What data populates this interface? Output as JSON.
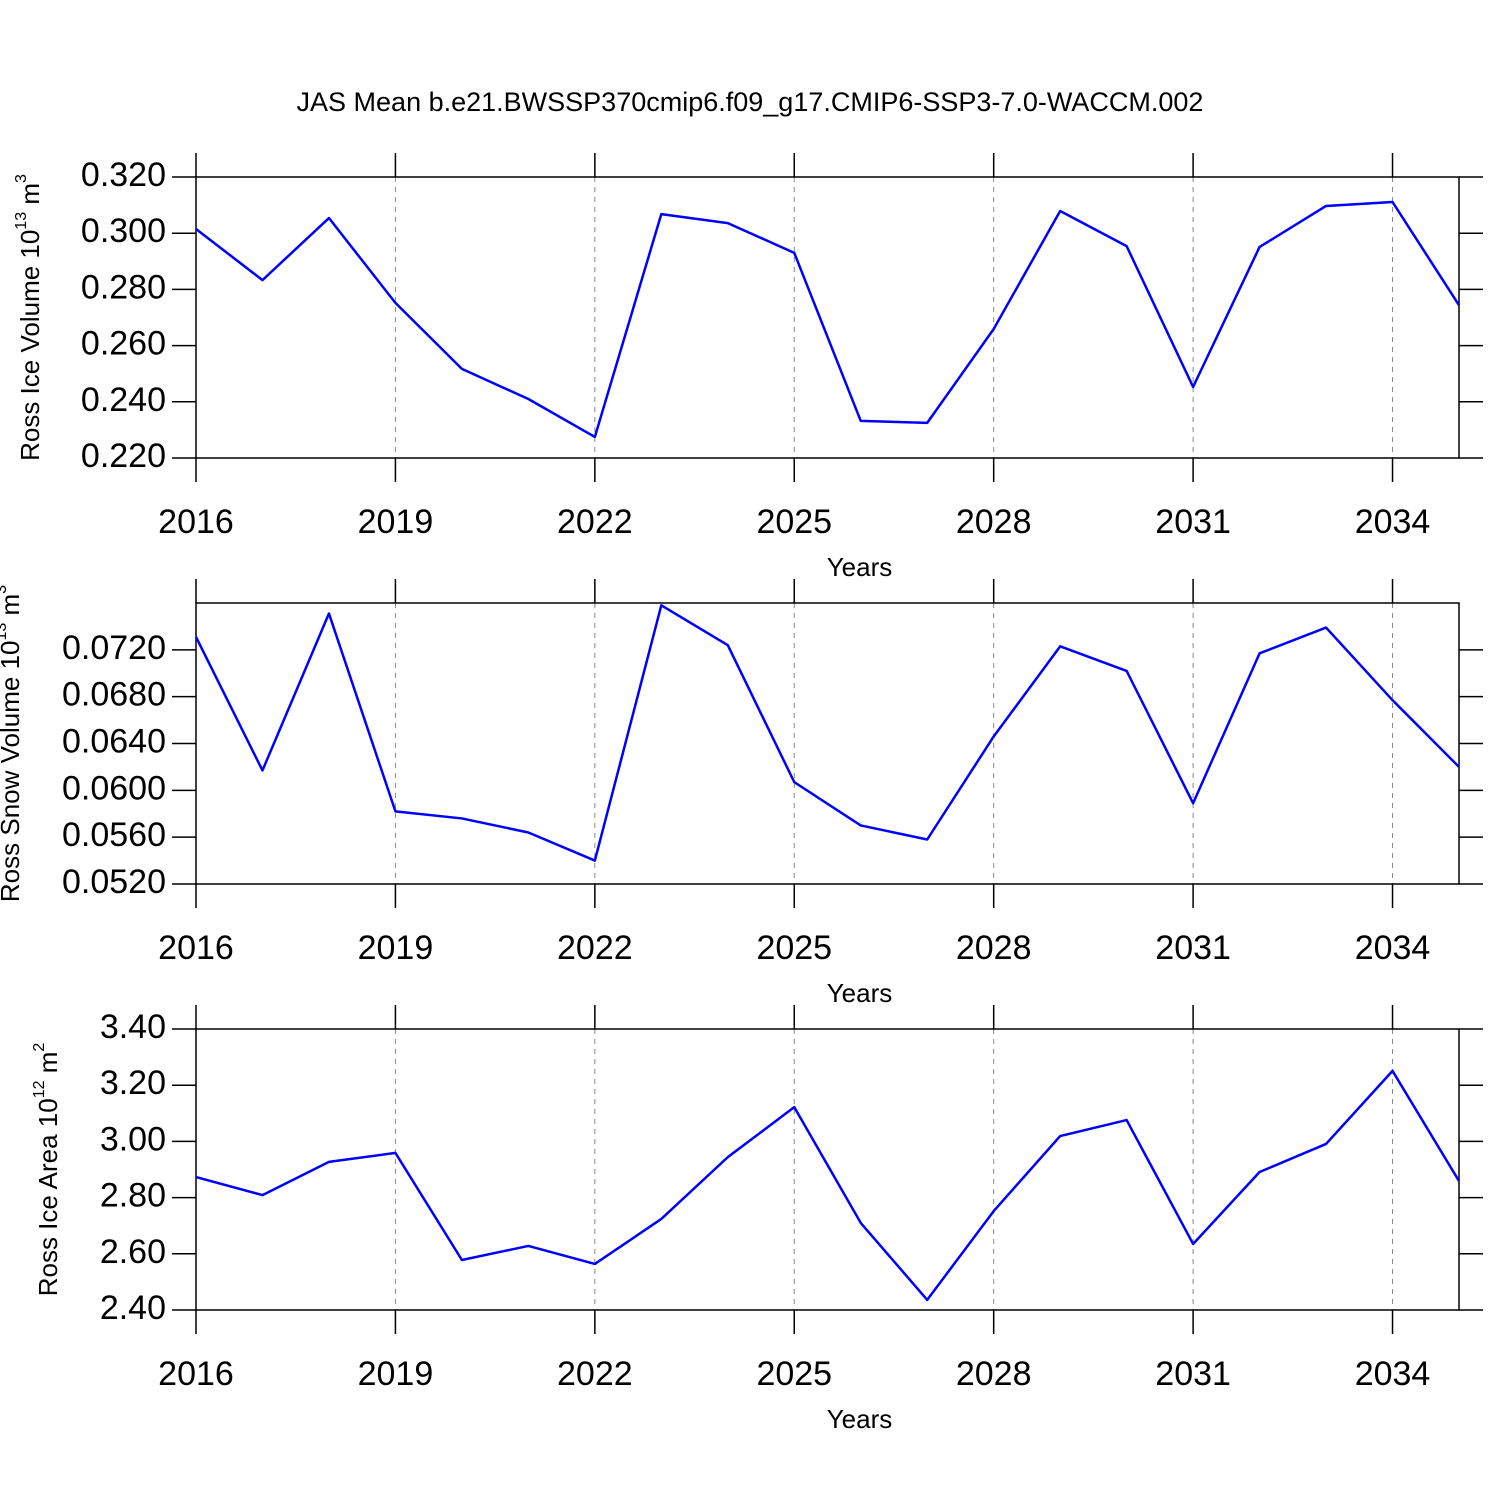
{
  "chart_data": [
    {
      "type": "line",
      "title": "JAS Mean b.e21.BWSSP370cmip6.f09_g17.CMIP6-SSP3-7.0-WACCM.002",
      "ylabel": "Ross Ice Volume 10",
      "ylabel_exp": "13",
      "ylabel_unit": " m",
      "ylabel_unit_exp": "3",
      "xlabel": "Years",
      "x": [
        2016,
        2017,
        2018,
        2019,
        2020,
        2021,
        2022,
        2023,
        2024,
        2025,
        2026,
        2027,
        2028,
        2029,
        2030,
        2031,
        2032,
        2033,
        2034,
        2035
      ],
      "series": [
        {
          "color": "#0000ff",
          "values": [
            0.3015,
            0.2833,
            0.3054,
            0.2752,
            0.2517,
            0.241,
            0.2275,
            0.3068,
            0.3036,
            0.293,
            0.2332,
            0.2325,
            0.2659,
            0.3079,
            0.2954,
            0.2453,
            0.2951,
            0.3097,
            0.3111,
            0.2744
          ]
        }
      ],
      "xlim": [
        2016,
        2035
      ],
      "xticks": [
        2016,
        2019,
        2022,
        2025,
        2028,
        2031,
        2034
      ],
      "ylim": [
        0.22,
        0.32
      ],
      "yticks": [
        {
          "value": 0.22,
          "label": "0.220"
        },
        {
          "value": 0.24,
          "label": "0.240"
        },
        {
          "value": 0.26,
          "label": "0.260"
        },
        {
          "value": 0.28,
          "label": "0.280"
        },
        {
          "value": 0.3,
          "label": "0.300"
        },
        {
          "value": 0.32,
          "label": "0.320"
        }
      ],
      "grid": "x-dashed"
    },
    {
      "type": "line",
      "ylabel": "Ross Snow Volume 10",
      "ylabel_exp": "13",
      "ylabel_unit": " m",
      "ylabel_unit_exp": "3",
      "xlabel": "Years",
      "x": [
        2016,
        2017,
        2018,
        2019,
        2020,
        2021,
        2022,
        2023,
        2024,
        2025,
        2026,
        2027,
        2028,
        2029,
        2030,
        2031,
        2032,
        2033,
        2034,
        2035
      ],
      "series": [
        {
          "color": "#0000ff",
          "values": [
            0.0731,
            0.0617,
            0.0751,
            0.0582,
            0.0576,
            0.0564,
            0.054,
            0.0758,
            0.0724,
            0.0607,
            0.057,
            0.0558,
            0.0646,
            0.0723,
            0.0702,
            0.0589,
            0.0717,
            0.0739,
            0.0677,
            0.062
          ]
        }
      ],
      "xlim": [
        2016,
        2035
      ],
      "xticks": [
        2016,
        2019,
        2022,
        2025,
        2028,
        2031,
        2034
      ],
      "ylim": [
        0.052,
        0.076
      ],
      "yticks": [
        {
          "value": 0.052,
          "label": "0.0520"
        },
        {
          "value": 0.056,
          "label": "0.0560"
        },
        {
          "value": 0.06,
          "label": "0.0600"
        },
        {
          "value": 0.064,
          "label": "0.0640"
        },
        {
          "value": 0.068,
          "label": "0.0680"
        },
        {
          "value": 0.072,
          "label": "0.0720"
        }
      ],
      "grid": "x-dashed"
    },
    {
      "type": "line",
      "ylabel": "Ross Ice Area 10",
      "ylabel_exp": "12",
      "ylabel_unit": " m",
      "ylabel_unit_exp": "2",
      "xlabel": "Years",
      "x": [
        2016,
        2017,
        2018,
        2019,
        2020,
        2021,
        2022,
        2023,
        2024,
        2025,
        2026,
        2027,
        2028,
        2029,
        2030,
        2031,
        2032,
        2033,
        2034,
        2035
      ],
      "series": [
        {
          "color": "#0000ff",
          "values": [
            2.873,
            2.809,
            2.927,
            2.959,
            2.578,
            2.628,
            2.564,
            2.724,
            2.944,
            3.122,
            2.71,
            2.436,
            2.752,
            3.019,
            3.076,
            2.635,
            2.891,
            2.991,
            3.251,
            2.859
          ]
        }
      ],
      "xlim": [
        2016,
        2035
      ],
      "xticks": [
        2016,
        2019,
        2022,
        2025,
        2028,
        2031,
        2034
      ],
      "ylim": [
        2.4,
        3.4
      ],
      "yticks": [
        {
          "value": 2.4,
          "label": "2.40"
        },
        {
          "value": 2.6,
          "label": "2.60"
        },
        {
          "value": 2.8,
          "label": "2.80"
        },
        {
          "value": 3.0,
          "label": "3.00"
        },
        {
          "value": 3.2,
          "label": "3.20"
        },
        {
          "value": 3.4,
          "label": "3.40"
        }
      ],
      "grid": "x-dashed"
    }
  ]
}
